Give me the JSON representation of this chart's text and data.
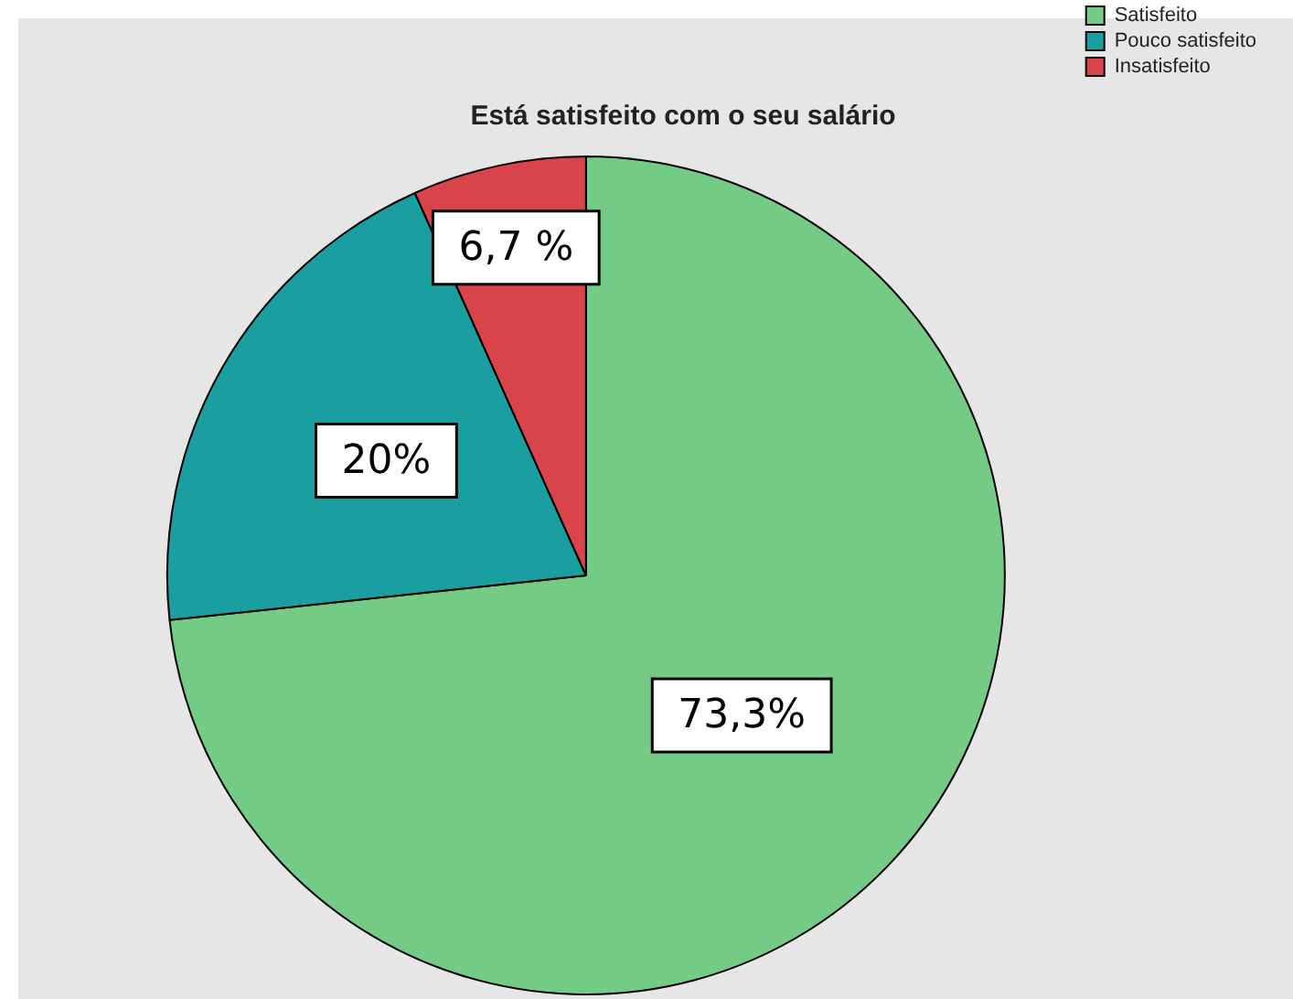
{
  "chart_data": {
    "type": "pie",
    "title": "Está satisfeito com o seu salário",
    "categories": [
      "Satisfeito",
      "Pouco satisfeito",
      "Insatisfeito"
    ],
    "values": [
      73.3,
      20,
      6.7
    ],
    "colors": [
      "#74cb85",
      "#1a9ea0",
      "#d9434a"
    ],
    "value_labels": [
      "73,3%",
      "20%",
      "6,7 %"
    ],
    "legend": "top right"
  }
}
